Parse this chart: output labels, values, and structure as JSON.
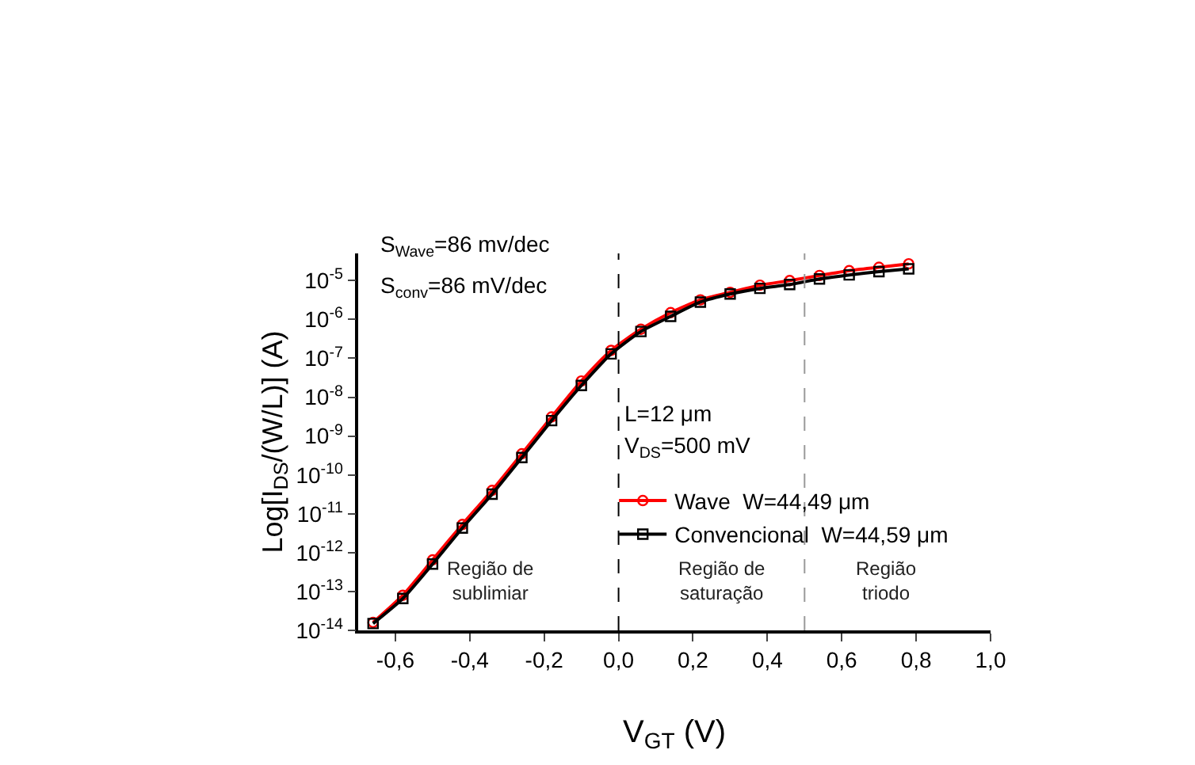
{
  "chart_data": {
    "type": "line",
    "xlabel": "V$_{GT}$ (V)",
    "ylabel": "Log[I$_{DS}$/(W/L)] (A)",
    "x": [
      -0.66,
      -0.58,
      -0.5,
      -0.42,
      -0.34,
      -0.26,
      -0.18,
      -0.1,
      -0.02,
      0.06,
      0.14,
      0.22,
      0.3,
      0.38,
      0.46,
      0.54,
      0.62,
      0.7,
      0.78
    ],
    "series": [
      {
        "name": "Wave  W=44,49 μm",
        "color": "#ff0000",
        "marker": "circle",
        "values": [
          1.6e-14,
          8e-14,
          6.5e-13,
          5.3e-12,
          4e-11,
          3.5e-10,
          3.1e-09,
          2.6e-08,
          1.6e-07,
          5.6e-07,
          1.5e-06,
          3.2e-06,
          5e-06,
          7.6e-06,
          1e-05,
          1.35e-05,
          1.8e-05,
          2.2e-05,
          2.7e-05
        ]
      },
      {
        "name": "Convencional  W=44,59 μm",
        "color": "#000000",
        "marker": "square",
        "values": [
          1.5e-14,
          6.6e-14,
          5.1e-13,
          4.3e-12,
          3.2e-11,
          2.8e-10,
          2.5e-09,
          2e-08,
          1.3e-07,
          4.9e-07,
          1.2e-06,
          2.8e-06,
          4.5e-06,
          6.3e-06,
          7.9e-06,
          1.1e-05,
          1.4e-05,
          1.7e-05,
          2e-05
        ]
      }
    ],
    "log": "y",
    "xlim": [
      -0.7,
      1.0
    ],
    "xticks": [
      {
        "value": -0.6,
        "label": "-0,6"
      },
      {
        "value": -0.4,
        "label": "-0,4"
      },
      {
        "value": -0.2,
        "label": "-0,2"
      },
      {
        "value": 0,
        "label": "0,0"
      },
      {
        "value": 0.2,
        "label": "0,2"
      },
      {
        "value": 0.4,
        "label": "0,4"
      },
      {
        "value": 0.6,
        "label": "0,6"
      },
      {
        "value": 0.8,
        "label": "0,8"
      },
      {
        "value": 1.0,
        "label": "1,0"
      }
    ],
    "ylim": [
      1e-14,
      5e-05
    ],
    "yticks": [
      {
        "value": 1e-14,
        "label": "10$^{-14}$"
      },
      {
        "value": 1e-13,
        "label": "10$^{-13}$"
      },
      {
        "value": 1e-12,
        "label": "10$^{-12}$"
      },
      {
        "value": 1e-11,
        "label": "10$^{-11}$"
      },
      {
        "value": 1e-10,
        "label": "10$^{-10}$"
      },
      {
        "value": 1e-09,
        "label": "10$^{-9}$"
      },
      {
        "value": 1e-08,
        "label": "10$^{-8}$"
      },
      {
        "value": 1e-07,
        "label": "10$^{-7}$"
      },
      {
        "value": 1e-06,
        "label": "10$^{-6}$"
      },
      {
        "value": 1e-05,
        "label": "10$^{-5}$"
      }
    ],
    "ref_lines": [
      {
        "axis": "x",
        "value": 0,
        "color": "#000000",
        "line_style": "dashed"
      },
      {
        "axis": "x",
        "value": 0.5,
        "color": "#999999",
        "line_style": "dashed"
      }
    ],
    "annotations": [
      "S$_{Wave}$=86 mv/dec",
      "S$_{conv}$=86 mV/dec",
      "L=12 μm",
      "V$_{DS}$=500 mV",
      "Região de\nsublimiar",
      "Região de\nsaturação",
      "Região\ntriodo"
    ],
    "grid": false,
    "legend": "right",
    "line_style": "solid"
  }
}
